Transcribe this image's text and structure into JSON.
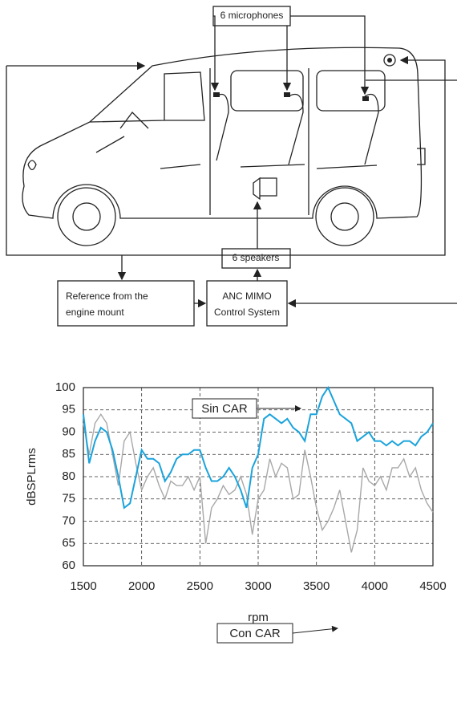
{
  "diagram": {
    "microphones": "6 microphones",
    "speakers": "6 speakers",
    "reference": {
      "lines": [
        "Reference from the",
        "engine mount"
      ]
    },
    "controller": {
      "lines": [
        "ANC MIMO",
        "Control System"
      ]
    }
  },
  "chart_data": {
    "type": "line",
    "x_label": "rpm",
    "y_label": "dBSPLrms",
    "x": [
      1500,
      1550,
      1600,
      1650,
      1700,
      1750,
      1800,
      1850,
      1900,
      1950,
      2000,
      2050,
      2100,
      2150,
      2200,
      2250,
      2300,
      2350,
      2400,
      2450,
      2500,
      2550,
      2600,
      2650,
      2700,
      2750,
      2800,
      2850,
      2900,
      2950,
      3000,
      3050,
      3100,
      3150,
      3200,
      3250,
      3300,
      3350,
      3400,
      3450,
      3500,
      3550,
      3600,
      3650,
      3700,
      3750,
      3800,
      3850,
      3900,
      3950,
      4000,
      4050,
      4100,
      4150,
      4200,
      4250,
      4300,
      4350,
      4400,
      4450,
      4500
    ],
    "series": [
      {
        "name": "Sin CAR",
        "color": "#1aa3dc",
        "values": [
          94,
          83,
          88,
          91,
          90,
          86,
          80,
          73,
          74,
          80,
          86,
          84,
          84,
          83,
          79,
          81,
          84,
          85,
          85,
          86,
          86,
          82,
          79,
          79,
          80,
          82,
          80,
          77,
          73,
          82,
          85,
          93,
          94,
          93,
          92,
          93,
          91,
          90,
          88,
          94,
          94,
          98,
          100,
          97,
          94,
          93,
          92,
          88,
          89,
          90,
          88,
          88,
          87,
          88,
          87,
          88,
          88,
          87,
          89,
          90,
          92
        ]
      },
      {
        "name": "Con CAR",
        "color": "#a8a8a8",
        "values": [
          92,
          85,
          92,
          94,
          92,
          85,
          78,
          88,
          90,
          83,
          77,
          80,
          82,
          78,
          75,
          79,
          78,
          78,
          80,
          77,
          80,
          65,
          73,
          75,
          78,
          76,
          77,
          80,
          76,
          67,
          75,
          77,
          84,
          80,
          83,
          82,
          75,
          76,
          86,
          80,
          73,
          68,
          70,
          73,
          77,
          70,
          63,
          68,
          82,
          79,
          78,
          80,
          77,
          82,
          82,
          84,
          80,
          82,
          77,
          74,
          72
        ]
      }
    ],
    "xlim": [
      1500,
      4500
    ],
    "xticks": [
      1500,
      2000,
      2500,
      3000,
      3500,
      4000,
      4500
    ],
    "ylim": [
      60,
      100
    ],
    "yticks": [
      60,
      65,
      70,
      75,
      80,
      85,
      90,
      95,
      100
    ],
    "grid": true
  }
}
